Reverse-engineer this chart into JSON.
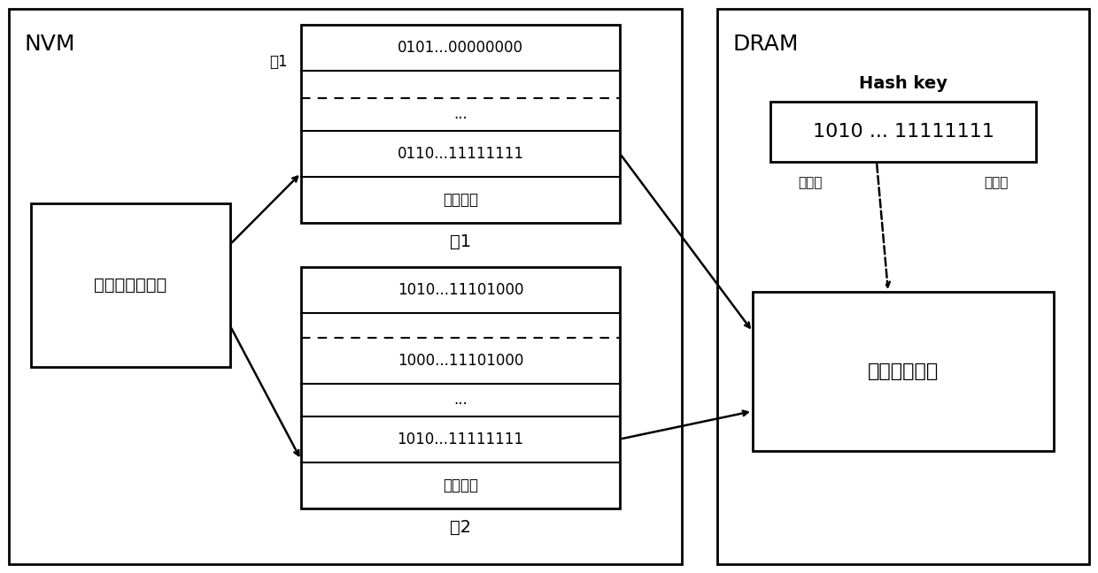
{
  "nvm_label": "NVM",
  "dram_label": "DRAM",
  "radix_box_label": "基数树结构目录",
  "array_box_label": "数组结构目录",
  "hashkey_label": "Hash key",
  "hashkey_value": "1010 ... 11111111",
  "segment_index_label": "段索引",
  "bucket_index_label": "桶索引",
  "bucket1_label": "桶1",
  "seg1_label": "段1",
  "seg2_label": "段2",
  "seg1_row1": "0101...00000000",
  "seg1_row3": "...",
  "seg1_row4": "0110...11111111",
  "seg1_row5": "后备区域",
  "seg2_row1": "1010...11101000",
  "seg2_row3": "1000...11101000",
  "seg2_row4": "...",
  "seg2_row5": "1010...11111111",
  "seg2_row6": "后备区域"
}
